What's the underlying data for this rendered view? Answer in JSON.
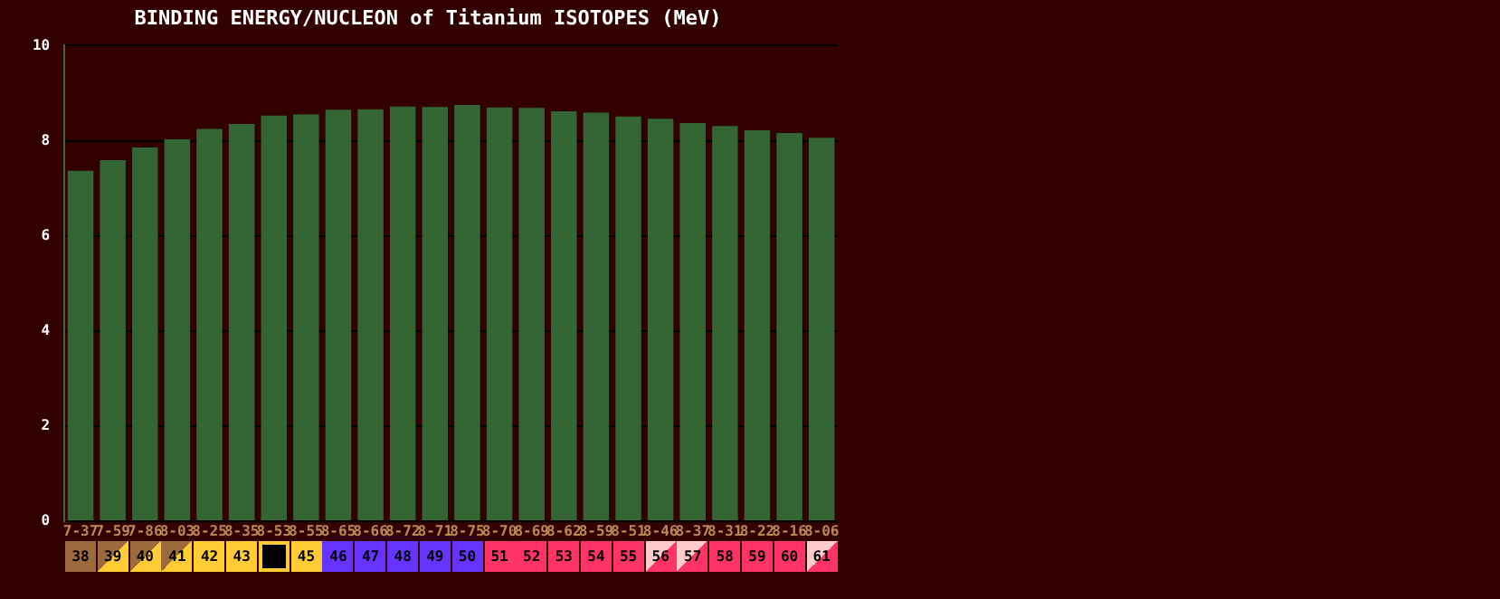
{
  "chart_data": {
    "type": "bar",
    "title": "BINDING ENERGY/NUCLEON of Titanium ISOTOPES (MeV)",
    "categories": [
      "38",
      "39",
      "40",
      "41",
      "42",
      "43",
      null,
      "45",
      "46",
      "47",
      "48",
      "49",
      "50",
      "51",
      "52",
      "53",
      "54",
      "55",
      "56",
      "57",
      "58",
      "59",
      "60",
      "61"
    ],
    "values": [
      7.37,
      7.59,
      7.86,
      8.03,
      8.25,
      8.35,
      8.53,
      8.55,
      8.65,
      8.66,
      8.72,
      8.71,
      8.75,
      8.7,
      8.69,
      8.62,
      8.59,
      8.51,
      8.46,
      8.37,
      8.31,
      8.22,
      8.16,
      8.06
    ],
    "value_labels": [
      "7-37",
      "7-59",
      "7-86",
      "8-03",
      "8-25",
      "8-35",
      "8-53",
      "8-55",
      "8-65",
      "8-66",
      "8-72",
      "8-71",
      "8-75",
      "8-70",
      "8-69",
      "8-62",
      "8-59",
      "8-51",
      "8-46",
      "8-37",
      "8-31",
      "8-22",
      "8-16",
      "8-06"
    ],
    "color": "#336633",
    "ylim": [
      0,
      10
    ],
    "yticks": [
      0,
      2,
      4,
      6,
      8,
      10
    ],
    "grid": "y",
    "legend": false
  }
}
